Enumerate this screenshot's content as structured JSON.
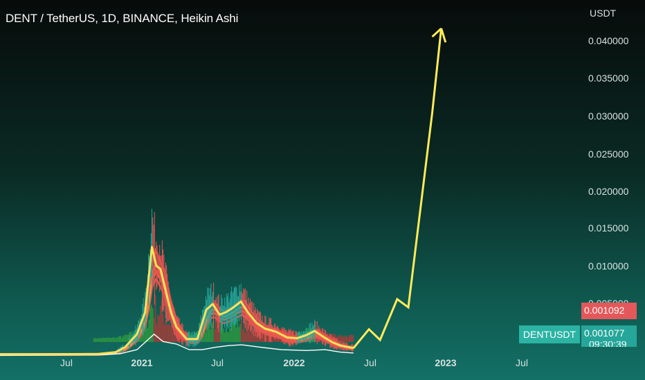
{
  "header": {
    "title": "DENT / TetherUS, 1D, BINANCE, Heikin Ashi",
    "currency": "USDT"
  },
  "price_axis": {
    "ticks": [
      "0.040000",
      "0.035000",
      "0.030000",
      "0.025000",
      "0.020000",
      "0.015000",
      "0.010000",
      "0.005000"
    ]
  },
  "time_axis": {
    "ticks": [
      "Jul",
      "2021",
      "Jul",
      "2022",
      "Jul",
      "2023",
      "Jul"
    ]
  },
  "badges": {
    "symbol": "DENTUSDT",
    "last_price": "0.001092",
    "ma_price": "0.001077",
    "countdown_partial": "09:30:39"
  },
  "colors": {
    "up_candle": "#26a69a",
    "down_candle": "#ef5350",
    "volume_up": "#2e9b3c",
    "volume_down": "#b03a35",
    "projection": "#ffeb5a",
    "ma_fast": "#fbe25a",
    "ma_band": "#e65c4f",
    "price_line": "#ffffff"
  },
  "chart_data": {
    "type": "line",
    "title": "DENT / TetherUS, 1D, BINANCE, Heikin Ashi",
    "ylabel": "USDT",
    "xlabel": "",
    "ylim": [
      -0.0018,
      0.0432
    ],
    "grid": false,
    "x_range": [
      "2020-04-15",
      "2023-12-31"
    ],
    "series": [
      {
        "role": "price",
        "x": [
          "2020-04-15",
          "2020-07-01",
          "2020-10-01",
          "2020-12-01",
          "2021-01-10",
          "2021-02-01",
          "2021-03-01",
          "2021-03-20",
          "2021-04-05",
          "2021-04-15",
          "2021-04-25",
          "2021-05-10",
          "2021-05-20",
          "2021-06-01",
          "2021-06-25",
          "2021-07-20",
          "2021-08-10",
          "2021-08-25",
          "2021-09-10",
          "2021-09-25",
          "2021-10-10",
          "2021-10-30",
          "2021-11-15",
          "2021-12-05",
          "2021-12-25",
          "2022-01-20",
          "2022-02-15",
          "2022-03-10",
          "2022-04-01",
          "2022-04-20",
          "2022-05-10",
          "2022-06-01",
          "2022-06-20",
          "2022-07-10",
          "2022-07-20"
        ],
        "y": [
          0.00035,
          0.00035,
          0.00036,
          0.00038,
          0.0006,
          0.0012,
          0.0028,
          0.0055,
          0.0135,
          0.0112,
          0.0108,
          0.0075,
          0.0054,
          0.0037,
          0.0022,
          0.0022,
          0.0058,
          0.0065,
          0.0052,
          0.0055,
          0.006,
          0.0068,
          0.0055,
          0.0042,
          0.0035,
          0.0031,
          0.0024,
          0.0023,
          0.0027,
          0.0032,
          0.0025,
          0.0018,
          0.0014,
          0.0012,
          0.0011
        ]
      },
      {
        "role": "projection",
        "x": [
          "2022-07-20",
          "2022-08-25",
          "2022-09-20",
          "2022-10-30",
          "2022-11-25",
          "2023-01-20",
          "2023-02-10",
          "2023-02-20"
        ],
        "y": [
          0.0011,
          0.0034,
          0.0021,
          0.0071,
          0.0061,
          0.03,
          0.0403,
          0.0386
        ]
      },
      {
        "role": "slow_ma",
        "x": [
          "2020-04-15",
          "2020-12-01",
          "2021-01-20",
          "2021-03-01",
          "2021-04-10",
          "2021-05-01",
          "2021-06-01",
          "2021-07-01",
          "2021-08-01",
          "2021-09-01",
          "2021-10-01",
          "2021-11-01",
          "2021-12-15",
          "2022-02-01",
          "2022-04-01",
          "2022-05-15",
          "2022-06-20",
          "2022-07-20"
        ],
        "y": [
          0.0002,
          0.00025,
          0.0004,
          0.0009,
          0.0028,
          0.0019,
          0.0016,
          0.0009,
          0.0009,
          0.0012,
          0.0014,
          0.0015,
          0.0012,
          0.0009,
          0.0008,
          0.0009,
          0.0006,
          0.0005
        ]
      }
    ]
  }
}
